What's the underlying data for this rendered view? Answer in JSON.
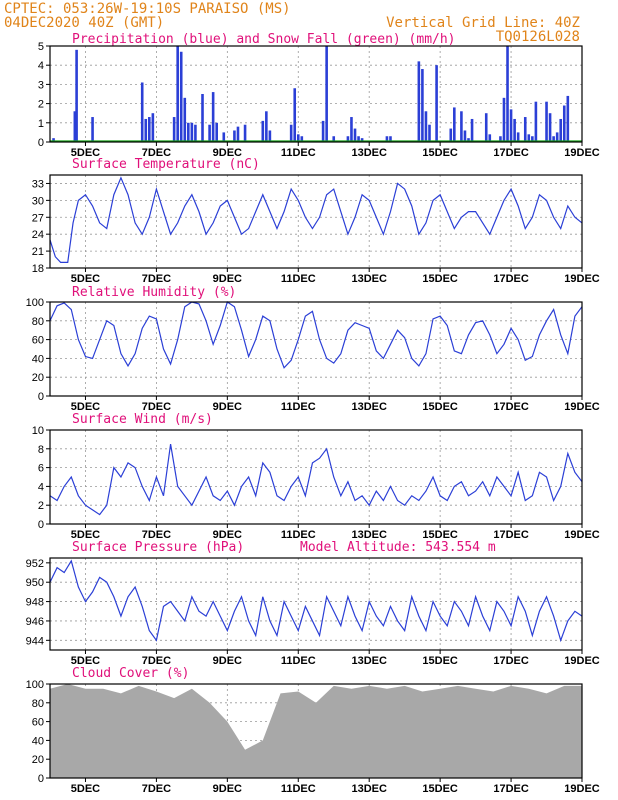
{
  "header": {
    "line1": "CPTEC:   053:26W-19:10S  PARAISO (MS)",
    "line2_left": "04DEC2020 40Z (GMT)",
    "line2_right": "Vertical Grid Line: 40Z",
    "code": "TQ0126L028"
  },
  "colors": {
    "header": "#e0841a",
    "title": "#e0107a",
    "series": "#2b3fd6",
    "snow": "#12a012",
    "cloud": "#a8a8a8",
    "grid": "#999999"
  },
  "x_ticks": [
    "5DEC",
    "7DEC",
    "9DEC",
    "11DEC",
    "13DEC",
    "15DEC",
    "17DEC",
    "19DEC"
  ],
  "x_tick_days": [
    5,
    7,
    9,
    11,
    13,
    15,
    17,
    19
  ],
  "x_range": [
    4.0,
    19.0
  ],
  "chart_data": [
    {
      "type": "bar",
      "title": "Precipitation (blue) and Snow Fall (green) (mm/h)",
      "ylim": [
        0,
        5
      ],
      "yticks": [
        0,
        1,
        2,
        3,
        4,
        5
      ],
      "series": [
        {
          "name": "Precipitation",
          "x": [
            4.1,
            4.7,
            4.75,
            5.2,
            6.6,
            6.7,
            6.8,
            6.9,
            7.5,
            7.6,
            7.7,
            7.8,
            7.9,
            8.0,
            8.1,
            8.3,
            8.5,
            8.6,
            8.7,
            8.9,
            9.2,
            9.3,
            9.5,
            10.0,
            10.1,
            10.2,
            10.8,
            10.9,
            11.0,
            11.1,
            11.7,
            11.8,
            12.0,
            12.4,
            12.5,
            12.6,
            12.7,
            12.8,
            13.5,
            13.6,
            14.4,
            14.5,
            14.6,
            14.7,
            14.9,
            15.3,
            15.4,
            15.6,
            15.7,
            15.8,
            15.9,
            16.3,
            16.4,
            16.7,
            16.8,
            16.9,
            17.0,
            17.1,
            17.2,
            17.4,
            17.5,
            17.6,
            17.7,
            18.0,
            18.1,
            18.2,
            18.3,
            18.4,
            18.5,
            18.6
          ],
          "values": [
            0.2,
            1.6,
            4.8,
            1.3,
            3.1,
            1.2,
            1.3,
            1.5,
            1.3,
            5.0,
            4.7,
            2.3,
            1.0,
            1.0,
            0.9,
            2.5,
            0.9,
            2.6,
            1.0,
            0.5,
            0.6,
            0.8,
            0.9,
            1.1,
            1.6,
            0.6,
            0.9,
            2.8,
            0.4,
            0.3,
            1.1,
            5.0,
            0.3,
            0.3,
            1.3,
            0.7,
            0.3,
            0.2,
            0.3,
            0.3,
            4.2,
            3.8,
            1.6,
            0.9,
            4.0,
            0.7,
            1.8,
            1.6,
            0.6,
            0.2,
            1.2,
            1.5,
            0.4,
            0.3,
            2.3,
            5.0,
            1.7,
            1.2,
            0.5,
            1.3,
            0.4,
            0.3,
            2.1,
            2.1,
            1.5,
            0.3,
            0.5,
            1.2,
            1.9,
            2.4
          ]
        },
        {
          "name": "Snow Fall",
          "x": [
            4.0,
            19.0
          ],
          "values": [
            0,
            0
          ]
        }
      ]
    },
    {
      "type": "line",
      "title": "Surface Temperature (nC)",
      "ylim": [
        18,
        34.5
      ],
      "yticks": [
        18,
        21,
        24,
        27,
        30,
        33
      ],
      "x": [
        4.0,
        4.15,
        4.3,
        4.5,
        4.65,
        4.8,
        5.0,
        5.2,
        5.4,
        5.6,
        5.8,
        6.0,
        6.2,
        6.4,
        6.6,
        6.8,
        7.0,
        7.2,
        7.4,
        7.6,
        7.8,
        8.0,
        8.2,
        8.4,
        8.6,
        8.8,
        9.0,
        9.2,
        9.4,
        9.6,
        9.8,
        10.0,
        10.2,
        10.4,
        10.6,
        10.8,
        11.0,
        11.2,
        11.4,
        11.6,
        11.8,
        12.0,
        12.2,
        12.4,
        12.6,
        12.8,
        13.0,
        13.2,
        13.4,
        13.6,
        13.8,
        14.0,
        14.2,
        14.4,
        14.6,
        14.8,
        15.0,
        15.2,
        15.4,
        15.6,
        15.8,
        16.0,
        16.2,
        16.4,
        16.6,
        16.8,
        17.0,
        17.2,
        17.4,
        17.6,
        17.8,
        18.0,
        18.2,
        18.4,
        18.6,
        18.8,
        19.0
      ],
      "values": [
        23.0,
        20.0,
        19.0,
        19.0,
        26.0,
        30.0,
        31.0,
        29.0,
        26.0,
        25.0,
        31.0,
        34.0,
        31.0,
        26.0,
        24.0,
        27.0,
        32.0,
        28.0,
        24.0,
        26.0,
        29.0,
        31.0,
        28.0,
        24.0,
        26.0,
        29.0,
        30.0,
        27.0,
        24.0,
        25.0,
        28.0,
        31.0,
        28.0,
        25.0,
        28.0,
        32.0,
        30.0,
        27.0,
        25.0,
        27.0,
        31.0,
        32.0,
        28.0,
        24.0,
        27.0,
        31.0,
        30.0,
        27.0,
        24.0,
        28.0,
        33.0,
        32.0,
        29.0,
        24.0,
        26.0,
        30.0,
        31.0,
        28.0,
        25.0,
        27.0,
        28.0,
        28.0,
        26.0,
        24.0,
        27.0,
        30.0,
        32.0,
        29.0,
        25.0,
        27.0,
        31.0,
        30.0,
        27.0,
        25.0,
        29.0,
        27.0,
        26.0
      ]
    },
    {
      "type": "line",
      "title": "Relative Humidity (%)",
      "ylim": [
        0,
        100
      ],
      "yticks": [
        0,
        20,
        40,
        60,
        80,
        100
      ],
      "x": [
        4.0,
        4.2,
        4.4,
        4.6,
        4.8,
        5.0,
        5.2,
        5.4,
        5.6,
        5.8,
        6.0,
        6.2,
        6.4,
        6.6,
        6.8,
        7.0,
        7.2,
        7.4,
        7.6,
        7.8,
        8.0,
        8.2,
        8.4,
        8.6,
        8.8,
        9.0,
        9.2,
        9.4,
        9.6,
        9.8,
        10.0,
        10.2,
        10.4,
        10.6,
        10.8,
        11.0,
        11.2,
        11.4,
        11.6,
        11.8,
        12.0,
        12.2,
        12.4,
        12.6,
        12.8,
        13.0,
        13.2,
        13.4,
        13.6,
        13.8,
        14.0,
        14.2,
        14.4,
        14.6,
        14.8,
        15.0,
        15.2,
        15.4,
        15.6,
        15.8,
        16.0,
        16.2,
        16.4,
        16.6,
        16.8,
        17.0,
        17.2,
        17.4,
        17.6,
        17.8,
        18.0,
        18.2,
        18.4,
        18.6,
        18.8,
        19.0
      ],
      "values": [
        80,
        96,
        99,
        92,
        60,
        42,
        40,
        60,
        80,
        75,
        45,
        32,
        45,
        72,
        85,
        82,
        50,
        34,
        60,
        95,
        100,
        98,
        80,
        55,
        75,
        100,
        95,
        70,
        42,
        60,
        85,
        80,
        50,
        30,
        38,
        60,
        85,
        90,
        60,
        40,
        35,
        45,
        70,
        78,
        75,
        72,
        48,
        40,
        55,
        70,
        62,
        40,
        32,
        45,
        82,
        85,
        75,
        48,
        45,
        65,
        78,
        80,
        65,
        45,
        55,
        72,
        60,
        38,
        42,
        65,
        80,
        92,
        65,
        45,
        85,
        95
      ]
    },
    {
      "type": "line",
      "title": "Surface Wind (m/s)",
      "ylim": [
        0,
        10
      ],
      "yticks": [
        0,
        2,
        4,
        6,
        8,
        10
      ],
      "x": [
        4.0,
        4.2,
        4.4,
        4.6,
        4.8,
        5.0,
        5.2,
        5.4,
        5.6,
        5.8,
        6.0,
        6.2,
        6.4,
        6.6,
        6.8,
        7.0,
        7.2,
        7.4,
        7.6,
        7.8,
        8.0,
        8.2,
        8.4,
        8.6,
        8.8,
        9.0,
        9.2,
        9.4,
        9.6,
        9.8,
        10.0,
        10.2,
        10.4,
        10.6,
        10.8,
        11.0,
        11.2,
        11.4,
        11.6,
        11.8,
        12.0,
        12.2,
        12.4,
        12.6,
        12.8,
        13.0,
        13.2,
        13.4,
        13.6,
        13.8,
        14.0,
        14.2,
        14.4,
        14.6,
        14.8,
        15.0,
        15.2,
        15.4,
        15.6,
        15.8,
        16.0,
        16.2,
        16.4,
        16.6,
        16.8,
        17.0,
        17.2,
        17.4,
        17.6,
        17.8,
        18.0,
        18.2,
        18.4,
        18.6,
        18.8,
        19.0
      ],
      "values": [
        3.0,
        2.5,
        4.0,
        5.0,
        3.0,
        2.0,
        1.5,
        1.0,
        2.0,
        6.0,
        5.0,
        6.5,
        6.0,
        4.0,
        2.5,
        5.0,
        3.0,
        8.5,
        4.0,
        3.0,
        2.0,
        3.5,
        5.0,
        3.0,
        2.5,
        3.5,
        2.0,
        4.0,
        5.0,
        3.0,
        6.5,
        5.5,
        3.0,
        2.5,
        4.0,
        5.0,
        3.0,
        6.5,
        7.0,
        8.0,
        5.0,
        3.0,
        4.5,
        2.5,
        3.0,
        2.0,
        3.5,
        2.5,
        4.0,
        2.5,
        2.0,
        3.0,
        2.5,
        3.5,
        5.0,
        3.0,
        2.5,
        4.0,
        4.5,
        3.0,
        3.5,
        4.5,
        3.0,
        5.0,
        4.0,
        3.0,
        5.5,
        2.5,
        3.0,
        5.5,
        5.0,
        2.5,
        4.0,
        7.5,
        5.5,
        4.5
      ]
    },
    {
      "type": "line",
      "title": "Surface Pressure (hPa)",
      "annotation": "Model Altitude: 543.554 m",
      "ylim": [
        943,
        952.5
      ],
      "yticks": [
        944,
        946,
        948,
        950,
        952
      ],
      "x": [
        4.0,
        4.2,
        4.4,
        4.6,
        4.8,
        5.0,
        5.2,
        5.4,
        5.6,
        5.8,
        6.0,
        6.2,
        6.4,
        6.6,
        6.8,
        7.0,
        7.2,
        7.4,
        7.6,
        7.8,
        8.0,
        8.2,
        8.4,
        8.6,
        8.8,
        9.0,
        9.2,
        9.4,
        9.6,
        9.8,
        10.0,
        10.2,
        10.4,
        10.6,
        10.8,
        11.0,
        11.2,
        11.4,
        11.6,
        11.8,
        12.0,
        12.2,
        12.4,
        12.6,
        12.8,
        13.0,
        13.2,
        13.4,
        13.6,
        13.8,
        14.0,
        14.2,
        14.4,
        14.6,
        14.8,
        15.0,
        15.2,
        15.4,
        15.6,
        15.8,
        16.0,
        16.2,
        16.4,
        16.6,
        16.8,
        17.0,
        17.2,
        17.4,
        17.6,
        17.8,
        18.0,
        18.2,
        18.4,
        18.6,
        18.8,
        19.0
      ],
      "values": [
        950.0,
        951.5,
        951.0,
        952.2,
        949.5,
        948.0,
        949.0,
        950.5,
        950.0,
        948.5,
        946.5,
        948.5,
        949.5,
        947.5,
        945.0,
        944.0,
        947.5,
        948.0,
        947.0,
        946.0,
        948.5,
        947.0,
        946.5,
        948.0,
        946.5,
        945.0,
        947.0,
        948.5,
        946.0,
        944.5,
        948.5,
        946.0,
        944.5,
        948.0,
        946.5,
        945.0,
        947.5,
        946.0,
        944.5,
        948.5,
        947.0,
        945.5,
        948.5,
        946.5,
        945.0,
        948.0,
        946.5,
        945.5,
        947.5,
        946.0,
        945.0,
        948.5,
        946.5,
        945.0,
        948.0,
        946.5,
        945.5,
        948.0,
        947.0,
        945.5,
        948.5,
        946.5,
        945.0,
        948.0,
        947.0,
        945.5,
        948.5,
        947.0,
        944.5,
        947.0,
        948.5,
        946.5,
        944.0,
        946.0,
        947.0,
        946.5
      ]
    },
    {
      "type": "area",
      "title": "Cloud Cover (%)",
      "ylim": [
        0,
        100
      ],
      "yticks": [
        0,
        20,
        40,
        60,
        80,
        100
      ],
      "x": [
        4.0,
        4.5,
        5.0,
        5.5,
        6.0,
        6.5,
        7.0,
        7.5,
        8.0,
        8.5,
        9.0,
        9.5,
        10.0,
        10.5,
        11.0,
        11.5,
        12.0,
        12.5,
        13.0,
        13.5,
        14.0,
        14.5,
        15.0,
        15.5,
        16.0,
        16.5,
        17.0,
        17.5,
        18.0,
        18.5,
        19.0
      ],
      "values": [
        95,
        100,
        95,
        95,
        90,
        98,
        92,
        85,
        95,
        80,
        60,
        30,
        40,
        90,
        92,
        80,
        98,
        95,
        98,
        95,
        98,
        92,
        95,
        98,
        95,
        92,
        98,
        95,
        90,
        98,
        98
      ]
    }
  ]
}
